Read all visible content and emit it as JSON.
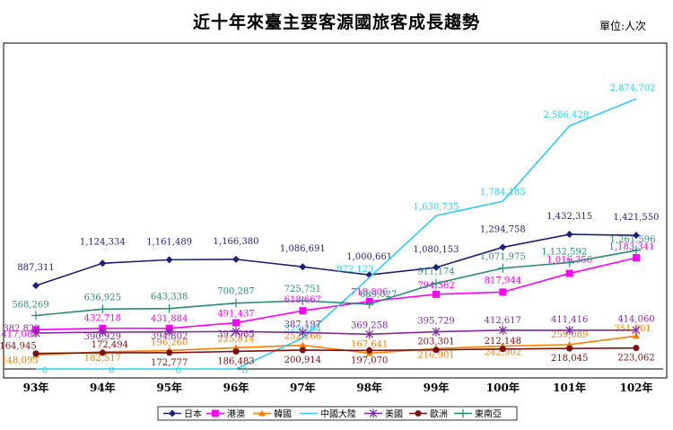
{
  "header": {
    "title": "近十年來臺主要客源國旅客成長趨勢",
    "unit": "單位:人次"
  },
  "chart_data": {
    "type": "line",
    "title": "近十年來臺主要客源國旅客成長趨勢",
    "unit": "單位:人次",
    "categories": [
      "93年",
      "94年",
      "95年",
      "96年",
      "97年",
      "98年",
      "99年",
      "100年",
      "101年",
      "102年"
    ],
    "ylim": [
      0,
      3400000
    ],
    "grid": false,
    "legend_position": "bottom",
    "series": [
      {
        "name": "日本",
        "color": "#1f1f7a",
        "marker": "diamond",
        "values": [
          887311,
          1124334,
          1161489,
          1166380,
          1086691,
          1000661,
          1080153,
          1294758,
          1432315,
          1421550
        ],
        "labels": [
          "887,311",
          "1,124,334",
          "1,161,489",
          "1,166,380",
          "1,086,691",
          "1,000,661",
          "1,080,153",
          "1,294,758",
          "1,432,315",
          "1,421,550"
        ]
      },
      {
        "name": "港澳",
        "color": "#ff00ff",
        "marker": "square",
        "values": [
          417087,
          432718,
          431884,
          491437,
          618667,
          718806,
          794362,
          817944,
          1016356,
          1183341
        ],
        "labels": [
          "417,087",
          "432,718",
          "431,884",
          "491,437",
          "618,667",
          "718,806",
          "794,362",
          "817,944",
          "1,016,356",
          "1,183,341"
        ]
      },
      {
        "name": "韓國",
        "color": "#ff7f00",
        "marker": "triangle",
        "values": [
          148095,
          182517,
          196260,
          225814,
          252266,
          167641,
          216901,
          242902,
          259089,
          351301
        ],
        "labels": [
          "148,095",
          "182,517",
          "196,260",
          "225,814",
          "252,266",
          "167,641",
          "216,901",
          "242,902",
          "259,089",
          "351,301"
        ]
      },
      {
        "name": "中國大陸",
        "color": "#33ccee",
        "marker": "none",
        "values": [
          0,
          0,
          0,
          0,
          329204,
          972123,
          1630735,
          1784185,
          2586428,
          2874702
        ],
        "labels": [
          "0",
          "0",
          "0",
          "0",
          "329,204",
          "972,123",
          "1,630,735",
          "1,784,185",
          "2,586,428",
          "2,874,702"
        ]
      },
      {
        "name": "美國",
        "color": "#7f2a9f",
        "marker": "star",
        "values": [
          382822,
          390929,
          394802,
          397965,
          387197,
          369258,
          395729,
          412617,
          411416,
          414060
        ],
        "labels": [
          "382,822",
          "390,929",
          "394,802",
          "397,965",
          "387,197",
          "369,258",
          "395,729",
          "412,617",
          "411,416",
          "414,060"
        ]
      },
      {
        "name": "歐洲",
        "color": "#7a1010",
        "marker": "circle",
        "values": [
          164945,
          172494,
          172777,
          186483,
          200914,
          197070,
          203301,
          212148,
          218045,
          223062
        ],
        "labels": [
          "164,945",
          "172,494",
          "172,777",
          "186,483",
          "200,914",
          "197,070",
          "203,301",
          "212,148",
          "218,045",
          "223,062"
        ]
      },
      {
        "name": "東南亞",
        "color": "#2a8a7a",
        "marker": "plus",
        "values": [
          568269,
          636925,
          643338,
          700287,
          725751,
          689027,
          911174,
          1071975,
          1132592,
          1261596
        ],
        "labels": [
          "568,269",
          "636,925",
          "643,338",
          "700,287",
          "725,751",
          "689,027",
          "911,174",
          "1,071,975",
          "1,132,592",
          "1,261,596"
        ]
      }
    ]
  }
}
